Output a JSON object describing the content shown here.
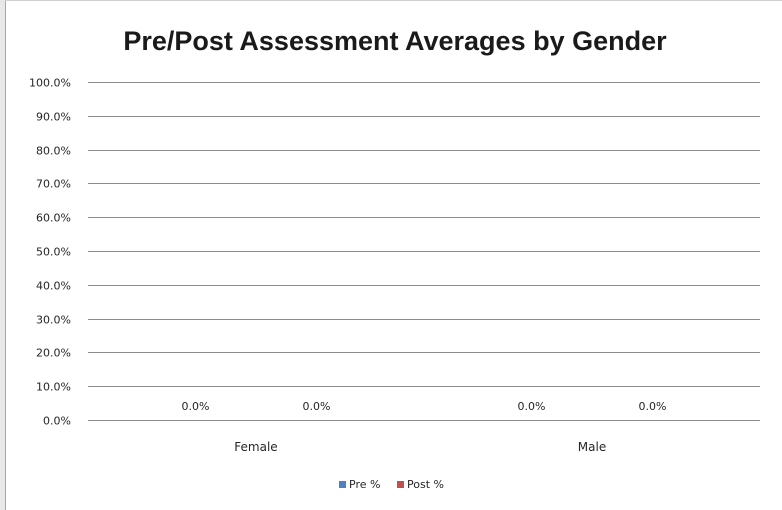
{
  "chart_data": {
    "type": "bar",
    "title": "Pre/Post Assessment Averages by Gender",
    "categories": [
      "Female",
      "Male"
    ],
    "series": [
      {
        "name": "Pre %",
        "values": [
          0.0,
          0.0
        ],
        "labels": [
          "0.0%",
          "0.0%"
        ],
        "color": "#4f81bd"
      },
      {
        "name": "Post %",
        "values": [
          0.0,
          0.0
        ],
        "labels": [
          "0.0%",
          "0.0%"
        ],
        "color": "#c0504d"
      }
    ],
    "ylim": [
      0,
      100
    ],
    "y_ticks": [
      0,
      10,
      20,
      30,
      40,
      50,
      60,
      70,
      80,
      90,
      100
    ],
    "y_tick_labels": [
      "0.0%",
      "10.0%",
      "20.0%",
      "30.0%",
      "40.0%",
      "50.0%",
      "60.0%",
      "70.0%",
      "80.0%",
      "90.0%",
      "100.0%"
    ],
    "grid": true,
    "legend_position": "bottom"
  },
  "colors": {
    "gridline": "#8c8c8c",
    "frame": "#a6a6a6"
  }
}
